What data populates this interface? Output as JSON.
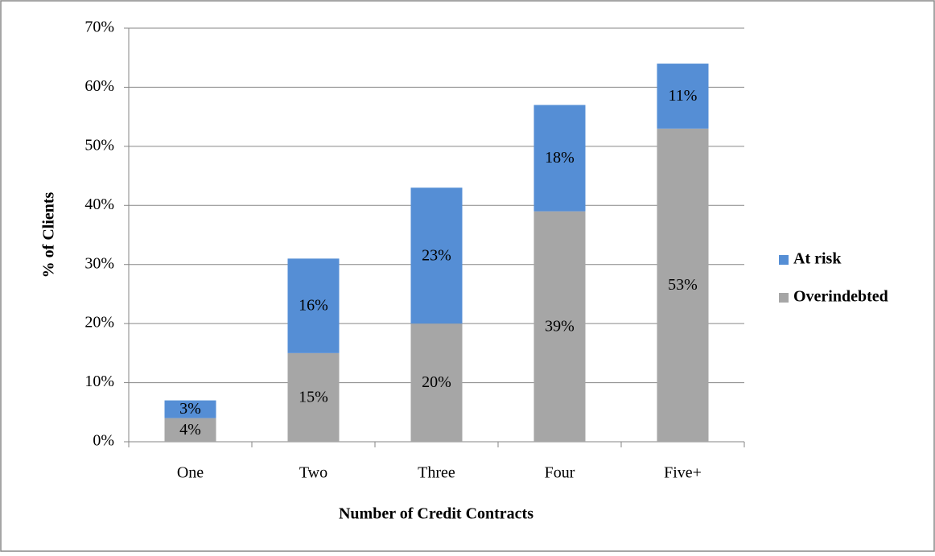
{
  "chart_data": {
    "type": "stacked_bar",
    "categories": [
      "One",
      "Two",
      "Three",
      "Four",
      "Five+"
    ],
    "series": [
      {
        "name": "Overindebted",
        "color": "#a6a6a6",
        "values": [
          4,
          15,
          20,
          39,
          53
        ],
        "value_labels": [
          "4%",
          "15%",
          "20%",
          "39%",
          "53%"
        ]
      },
      {
        "name": "At risk",
        "color": "#558ed5",
        "values": [
          3,
          16,
          23,
          18,
          11
        ],
        "value_labels": [
          "3%",
          "16%",
          "23%",
          "18%",
          "11%"
        ]
      }
    ],
    "ylim": [
      0,
      70
    ],
    "yticks": [
      {
        "value": 0,
        "label": "0%"
      },
      {
        "value": 10,
        "label": "10%"
      },
      {
        "value": 20,
        "label": "20%"
      },
      {
        "value": 30,
        "label": "30%"
      },
      {
        "value": 40,
        "label": "40%"
      },
      {
        "value": 50,
        "label": "50%"
      },
      {
        "value": 60,
        "label": "60%"
      },
      {
        "value": 70,
        "label": "70%"
      }
    ],
    "xlabel": "Number of Credit Contracts",
    "ylabel": "% of Clients",
    "grid": true,
    "legend": "right"
  }
}
